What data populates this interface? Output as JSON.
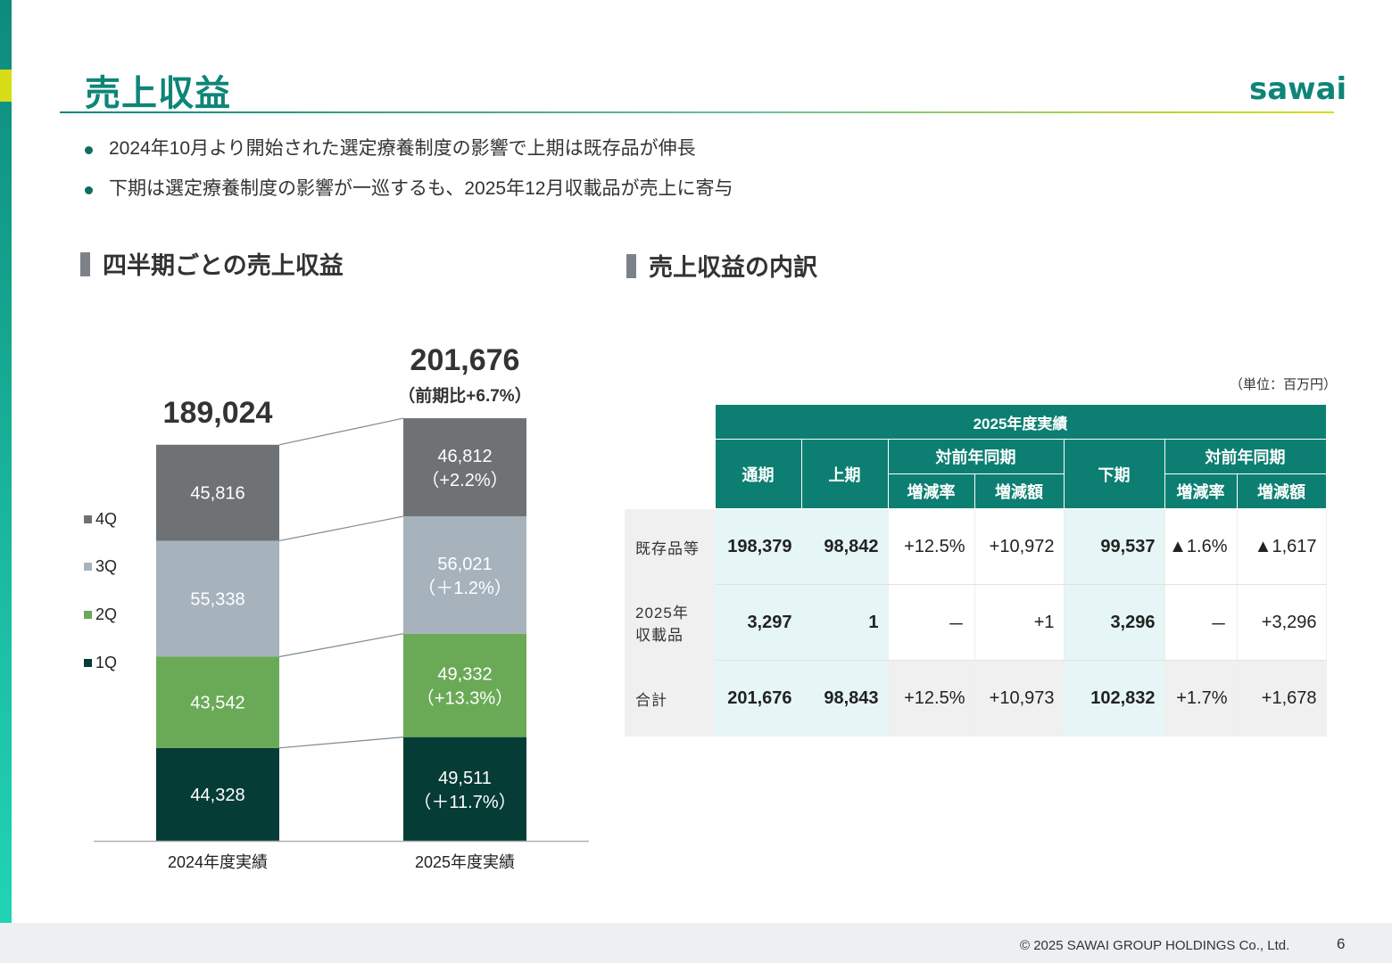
{
  "header": {
    "title": "売上収益",
    "logo": "sawai"
  },
  "bullets": [
    "2024年10月より開始された選定療養制度の影響で上期は既存品が伸長",
    "下期は選定療養制度の影響が一巡するも、2025年12月収載品が売上に寄与"
  ],
  "left_section": {
    "heading": "四半期ごとの売上収益"
  },
  "right_section": {
    "heading": "売上収益の内訳",
    "unit": "（単位：百万円）"
  },
  "colors": {
    "q1": "#053c35",
    "q2": "#6aaa56",
    "q3": "#a6b3bd",
    "q4": "#6f7275",
    "accent": "#0c7f72"
  },
  "chart_data": {
    "type": "bar",
    "stacked": true,
    "categories": [
      "2024年度実績",
      "2025年度実績"
    ],
    "series": [
      {
        "name": "1Q",
        "values": [
          44328,
          49511
        ],
        "labels": [
          "44,328",
          "49,511"
        ],
        "sublabels": [
          "",
          "（＋11.7%）"
        ]
      },
      {
        "name": "2Q",
        "values": [
          43542,
          49332
        ],
        "labels": [
          "43,542",
          "49,332"
        ],
        "sublabels": [
          "",
          "（+13.3%）"
        ]
      },
      {
        "name": "3Q",
        "values": [
          55338,
          56021
        ],
        "labels": [
          "55,338",
          "56,021"
        ],
        "sublabels": [
          "",
          "（＋1.2%）"
        ]
      },
      {
        "name": "4Q",
        "values": [
          45816,
          46812
        ],
        "labels": [
          "45,816",
          "46,812"
        ],
        "sublabels": [
          "",
          "（+2.2%）"
        ]
      }
    ],
    "totals": [
      "189,024",
      "201,676"
    ],
    "total_notes": [
      "",
      "（前期比+6.7%）"
    ],
    "legend_order": [
      "4Q",
      "3Q",
      "2Q",
      "1Q"
    ],
    "legend_position": "left"
  },
  "table": {
    "top_header": "2025年度実績",
    "col_fullyear": "通期",
    "col_h1": "上期",
    "col_yoy": "対前年同期",
    "col_h2": "下期",
    "col_rate": "増減率",
    "col_amount": "増減額",
    "rows": [
      {
        "label": "既存品等",
        "label2": "",
        "full": "198,379",
        "h1": "98,842",
        "h1_rate": "+12.5%",
        "h1_amt": "+10,972",
        "h2": "99,537",
        "h2_rate": "▲1.6%",
        "h2_amt": "▲1,617"
      },
      {
        "label": "2025年",
        "label2": "収載品",
        "full": "3,297",
        "h1": "1",
        "h1_rate": "－",
        "h1_amt": "+1",
        "h2": "3,296",
        "h2_rate": "－",
        "h2_amt": "+3,296"
      },
      {
        "label": "合計",
        "label2": "",
        "full": "201,676",
        "h1": "98,843",
        "h1_rate": "+12.5%",
        "h1_amt": "+10,973",
        "h2": "102,832",
        "h2_rate": "+1.7%",
        "h2_amt": "+1,678"
      }
    ]
  },
  "footer": {
    "copyright": "© 2025 SAWAI GROUP HOLDINGS Co., Ltd.",
    "page": "6"
  }
}
